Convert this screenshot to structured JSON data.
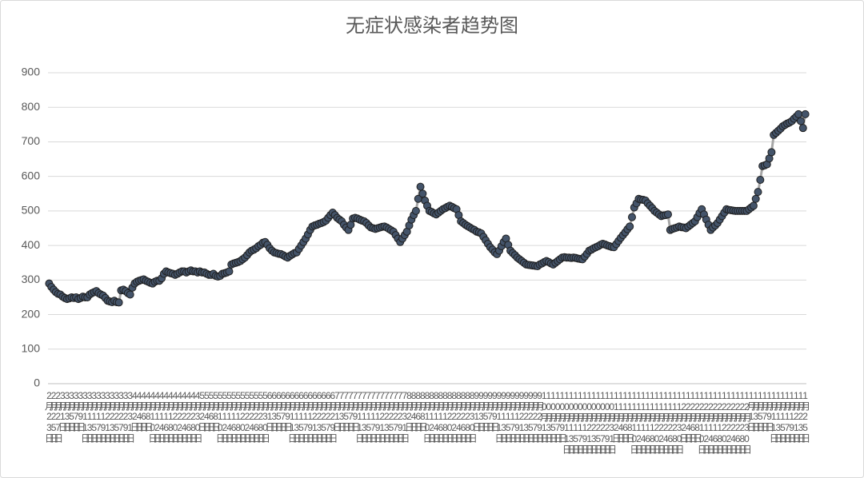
{
  "chart_data": {
    "type": "line",
    "title": "无症状感染者趋势图",
    "color": "#44546a",
    "line_color": "#a6a6a6",
    "grid": true,
    "ylim": [
      0,
      900
    ],
    "yticks": [
      0,
      100,
      200,
      300,
      400,
      500,
      600,
      700,
      800,
      900
    ],
    "categories": [
      "2月23日",
      null,
      "2月25日",
      null,
      "2月27日",
      null,
      "3月1日",
      null,
      "3月3日",
      null,
      "3月5日",
      null,
      "3月7日",
      null,
      "3月9日",
      null,
      "3月11日",
      null,
      "3月13日",
      null,
      "3月15日",
      null,
      "3月17日",
      null,
      "3月19日",
      null,
      "3月21日",
      null,
      "3月23日",
      null,
      "3月25日",
      null,
      "3月27日",
      null,
      "3月29日",
      null,
      "3月31日",
      null,
      "4月2日",
      null,
      "4月4日",
      null,
      "4月6日",
      null,
      "4月8日",
      null,
      "4月10日",
      null,
      "4月12日",
      null,
      "4月14日",
      null,
      "4月16日",
      null,
      "4月18日",
      null,
      "4月20日",
      null,
      "4月22日",
      null,
      "4月24日",
      null,
      "4月26日",
      null,
      "4月28日",
      null,
      "4月30日",
      null,
      "5月2日",
      null,
      "5月4日",
      null,
      "5月6日",
      null,
      "5月8日",
      null,
      "5月10日",
      null,
      "5月12日",
      null,
      "5月14日",
      null,
      "5月16日",
      null,
      "5月18日",
      null,
      "5月20日",
      null,
      "5月22日",
      null,
      "5月24日",
      null,
      "5月26日",
      null,
      "5月28日",
      null,
      "5月30日",
      null,
      "6月1日",
      null,
      "6月3日",
      null,
      "6月5日",
      null,
      "6月7日",
      null,
      "6月9日",
      null,
      "6月11日",
      null,
      "6月13日",
      null,
      "6月15日",
      null,
      "6月17日",
      null,
      "6月19日",
      null,
      "6月21日",
      null,
      "6月23日",
      null,
      "6月25日",
      null,
      "6月27日",
      null,
      "6月29日",
      null,
      "7月1日",
      null,
      "7月3日",
      null,
      "7月5日",
      null,
      "7月7日",
      null,
      "7月9日",
      null,
      "7月11日",
      null,
      "7月13日",
      null,
      "7月15日",
      null,
      "7月17日",
      null,
      "7月19日",
      null,
      "7月21日",
      null,
      "7月23日",
      null,
      "7月25日",
      null,
      "7月27日",
      null,
      "7月29日",
      null,
      "7月31日",
      null,
      "8月2日",
      null,
      "8月4日",
      null,
      "8月6日",
      null,
      "8月8日",
      null,
      "8月10日",
      null,
      "8月12日",
      null,
      "8月14日",
      null,
      "8月16日",
      null,
      "8月18日",
      null,
      "8月20日",
      null,
      "8月22日",
      null,
      "8月24日",
      null,
      "8月26日",
      null,
      "8月28日",
      null,
      "8月30日",
      null,
      "9月1日",
      null,
      "9月3日",
      null,
      "9月5日",
      null,
      "9月7日",
      null,
      "9月9日",
      null,
      "9月11日",
      null,
      "9月13日",
      null,
      "9月15日",
      null,
      "9月17日",
      null,
      "9月19日",
      null,
      "9月21日",
      null,
      "9月23日",
      null,
      "9月25日",
      null,
      "9月27日",
      null,
      "9月29日",
      null,
      "10月1日",
      null,
      "10月3日",
      null,
      "10月5日",
      null,
      "10月7日",
      null,
      "10月9日",
      null,
      "10月11日",
      null,
      "10月13日",
      null,
      "10月15日",
      null,
      "10月17日",
      null,
      "10月19日",
      null,
      "10月21日",
      null,
      "10月23日",
      null,
      "10月25日",
      null,
      "10月27日",
      null,
      "10月29日",
      null,
      "10月31日",
      null,
      "11月2日",
      null,
      "11月4日",
      null,
      "11月6日",
      null,
      "11月8日",
      null,
      "11月10日",
      null,
      "11月12日",
      null,
      "11月14日",
      null,
      "11月16日",
      null,
      "11月18日",
      null,
      "11月20日",
      null,
      "11月22日",
      null,
      "11月24日",
      null,
      "11月26日",
      null,
      "11月28日",
      null,
      "11月30日",
      null,
      "12月2日",
      null,
      "12月4日",
      null,
      "12月6日",
      null,
      "12月8日",
      null,
      "12月10日",
      null,
      "12月12日",
      null,
      "12月14日",
      null,
      "12月16日",
      null,
      "12月18日",
      null,
      "12月20日",
      null,
      "12月22日",
      null,
      "12月24日",
      null,
      "12月26日",
      null,
      "12月28日",
      null,
      "12月30日",
      null,
      "1月1日",
      null,
      "1月3日",
      null,
      "1月5日",
      null,
      "1月7日",
      null,
      "1月9日",
      null,
      "1月11日",
      null,
      "1月13日",
      null,
      "1月15日",
      null,
      "1月17日",
      null,
      "1月19日",
      null,
      "1月21日",
      null,
      "1月23日",
      null,
      "1月25日"
    ],
    "values": [
      290,
      280,
      272,
      265,
      260,
      258,
      252,
      248,
      245,
      247,
      250,
      248,
      250,
      245,
      248,
      252,
      250,
      250,
      258,
      262,
      265,
      268,
      262,
      258,
      255,
      248,
      240,
      238,
      236,
      240,
      236,
      235,
      270,
      272,
      268,
      262,
      258,
      278,
      290,
      295,
      298,
      300,
      302,
      298,
      295,
      292,
      290,
      295,
      298,
      298,
      305,
      318,
      325,
      322,
      320,
      318,
      315,
      318,
      322,
      325,
      325,
      322,
      325,
      328,
      325,
      325,
      322,
      325,
      322,
      322,
      318,
      315,
      315,
      318,
      312,
      310,
      312,
      318,
      320,
      322,
      325,
      345,
      348,
      350,
      352,
      355,
      360,
      365,
      372,
      380,
      385,
      388,
      392,
      398,
      402,
      408,
      410,
      402,
      392,
      385,
      380,
      378,
      376,
      375,
      372,
      368,
      365,
      370,
      374,
      378,
      380,
      390,
      400,
      410,
      420,
      432,
      445,
      455,
      458,
      460,
      463,
      465,
      468,
      472,
      480,
      488,
      495,
      488,
      480,
      475,
      470,
      460,
      452,
      445,
      460,
      478,
      480,
      478,
      475,
      472,
      470,
      465,
      458,
      452,
      450,
      448,
      450,
      452,
      454,
      455,
      452,
      448,
      444,
      440,
      430,
      420,
      410,
      420,
      430,
      440,
      458,
      475,
      488,
      500,
      535,
      570,
      550,
      530,
      515,
      500,
      497,
      493,
      490,
      495,
      500,
      505,
      508,
      512,
      515,
      512,
      508,
      505,
      488,
      470,
      465,
      460,
      456,
      452,
      448,
      445,
      440,
      438,
      435,
      425,
      415,
      405,
      395,
      388,
      380,
      375,
      385,
      398,
      410,
      420,
      402,
      385,
      378,
      372,
      365,
      360,
      355,
      350,
      345,
      344,
      343,
      342,
      341,
      340,
      345,
      348,
      352,
      355,
      352,
      348,
      345,
      350,
      355,
      360,
      365,
      366,
      365,
      365,
      364,
      365,
      364,
      362,
      361,
      360,
      368,
      376,
      385,
      388,
      392,
      395,
      398,
      402,
      405,
      403,
      400,
      398,
      396,
      395,
      404,
      413,
      422,
      430,
      438,
      447,
      455,
      482,
      510,
      522,
      535,
      533,
      532,
      530,
      522,
      515,
      508,
      500,
      495,
      490,
      485,
      487,
      488,
      490,
      445,
      448,
      450,
      452,
      455,
      453,
      452,
      450,
      455,
      460,
      465,
      470,
      482,
      494,
      505,
      490,
      475,
      460,
      445,
      452,
      458,
      465,
      475,
      485,
      495,
      505,
      503,
      502,
      501,
      500,
      500,
      500,
      500,
      500,
      500,
      505,
      510,
      515,
      535,
      555,
      590,
      630,
      632,
      635,
      652,
      670,
      720,
      726,
      732,
      738,
      745,
      749,
      753,
      756,
      760,
      767,
      773,
      780,
      760,
      740,
      780
    ]
  }
}
